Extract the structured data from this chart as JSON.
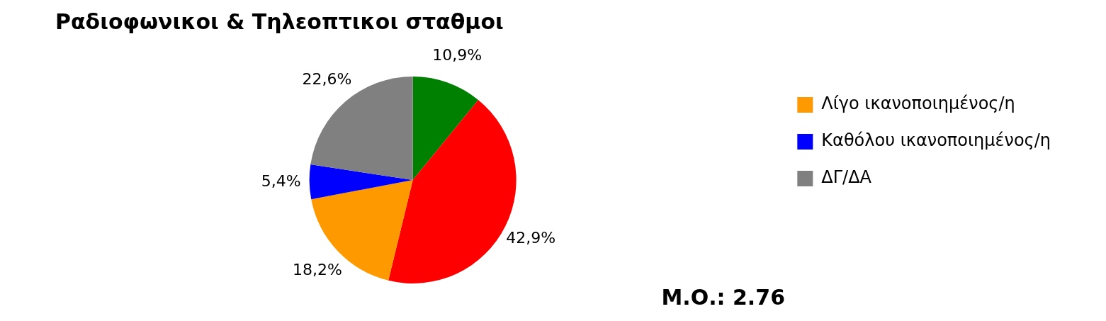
{
  "chart_data": {
    "type": "pie",
    "title": "Ραδιοφωνικοι & Τηλεοπτικοι σταθμοι",
    "categories": [
      null,
      null,
      "Λίγο ικανοποιημένος/η",
      "Καθόλου ικανοποιημένος/η",
      "ΔΓ/ΔΑ"
    ],
    "values": [
      10.9,
      42.9,
      18.2,
      5.4,
      22.6
    ],
    "colors": [
      "#008000",
      "#ff0000",
      "#ff9900",
      "#0000ff",
      "#808080"
    ],
    "value_labels": [
      "10,9%",
      "42,9%",
      "18,2%",
      "5,4%",
      "22,6%"
    ],
    "legend": "top right",
    "annotations": [
      "Μ.Ο.: 2.76"
    ]
  }
}
